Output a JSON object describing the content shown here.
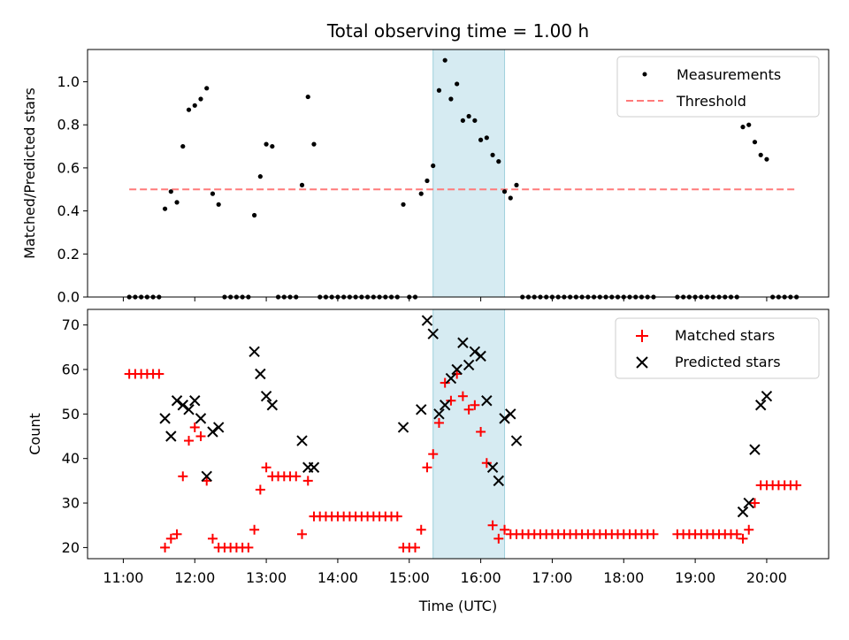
{
  "title": "Total observing time = 1.00 h",
  "colors": {
    "measurement": "#000000",
    "threshold": "#ff7a7a",
    "matched": "#ff0000",
    "predicted": "#000000",
    "highlight": "#add8e6"
  },
  "chart_data": [
    {
      "type": "scatter",
      "ylabel": "Matched/Predicted stars",
      "xlabel": "",
      "xlim": [
        "10:30",
        "20:52"
      ],
      "ylim": [
        0,
        1.15
      ],
      "yticks": [
        "0.0",
        "0.2",
        "0.4",
        "0.6",
        "0.8",
        "1.0"
      ],
      "grid": false,
      "legend_position": "top-right",
      "highlight_span": [
        "15:20",
        "16:20"
      ],
      "threshold": {
        "name": "Threshold",
        "y": 0.5,
        "x_start": "11:05",
        "x_end": "20:25",
        "style": "dashed"
      },
      "series": [
        {
          "name": "Measurements",
          "marker": "dot",
          "points": [
            [
              "11:05",
              0
            ],
            [
              "11:10",
              0
            ],
            [
              "11:15",
              0
            ],
            [
              "11:20",
              0
            ],
            [
              "11:25",
              0
            ],
            [
              "11:30",
              0
            ],
            [
              "11:35",
              0.41
            ],
            [
              "11:40",
              0.49
            ],
            [
              "11:45",
              0.44
            ],
            [
              "11:50",
              0.7
            ],
            [
              "11:55",
              0.87
            ],
            [
              "12:00",
              0.89
            ],
            [
              "12:05",
              0.92
            ],
            [
              "12:10",
              0.97
            ],
            [
              "12:15",
              0.48
            ],
            [
              "12:20",
              0.43
            ],
            [
              "12:25",
              0
            ],
            [
              "12:30",
              0
            ],
            [
              "12:35",
              0
            ],
            [
              "12:40",
              0
            ],
            [
              "12:45",
              0
            ],
            [
              "12:50",
              0.38
            ],
            [
              "12:55",
              0.56
            ],
            [
              "13:00",
              0.71
            ],
            [
              "13:05",
              0.7
            ],
            [
              "13:10",
              0
            ],
            [
              "13:15",
              0
            ],
            [
              "13:20",
              0
            ],
            [
              "13:25",
              0
            ],
            [
              "13:30",
              0.52
            ],
            [
              "13:35",
              0.93
            ],
            [
              "13:40",
              0.71
            ],
            [
              "13:45",
              0
            ],
            [
              "13:50",
              0
            ],
            [
              "13:55",
              0
            ],
            [
              "14:00",
              0
            ],
            [
              "14:05",
              0
            ],
            [
              "14:10",
              0
            ],
            [
              "14:15",
              0
            ],
            [
              "14:20",
              0
            ],
            [
              "14:25",
              0
            ],
            [
              "14:30",
              0
            ],
            [
              "14:35",
              0
            ],
            [
              "14:40",
              0
            ],
            [
              "14:45",
              0
            ],
            [
              "14:50",
              0
            ],
            [
              "14:55",
              0.43
            ],
            [
              "15:00",
              0
            ],
            [
              "15:05",
              0
            ],
            [
              "15:10",
              0.48
            ],
            [
              "15:15",
              0.54
            ],
            [
              "15:20",
              0.61
            ],
            [
              "15:25",
              0.96
            ],
            [
              "15:30",
              1.1
            ],
            [
              "15:35",
              0.92
            ],
            [
              "15:40",
              0.99
            ],
            [
              "15:45",
              0.82
            ],
            [
              "15:50",
              0.84
            ],
            [
              "15:55",
              0.82
            ],
            [
              "16:00",
              0.73
            ],
            [
              "16:05",
              0.74
            ],
            [
              "16:10",
              0.66
            ],
            [
              "16:15",
              0.63
            ],
            [
              "16:20",
              0.49
            ],
            [
              "16:25",
              0.46
            ],
            [
              "16:30",
              0.52
            ],
            [
              "16:35",
              0
            ],
            [
              "16:40",
              0
            ],
            [
              "16:45",
              0
            ],
            [
              "16:50",
              0
            ],
            [
              "16:55",
              0
            ],
            [
              "17:00",
              0
            ],
            [
              "17:05",
              0
            ],
            [
              "17:10",
              0
            ],
            [
              "17:15",
              0
            ],
            [
              "17:20",
              0
            ],
            [
              "17:25",
              0
            ],
            [
              "17:30",
              0
            ],
            [
              "17:35",
              0
            ],
            [
              "17:40",
              0
            ],
            [
              "17:45",
              0
            ],
            [
              "17:50",
              0
            ],
            [
              "17:55",
              0
            ],
            [
              "18:00",
              0
            ],
            [
              "18:05",
              0
            ],
            [
              "18:10",
              0
            ],
            [
              "18:15",
              0
            ],
            [
              "18:20",
              0
            ],
            [
              "18:25",
              0
            ],
            [
              "18:45",
              0
            ],
            [
              "18:50",
              0
            ],
            [
              "18:55",
              0
            ],
            [
              "19:00",
              0
            ],
            [
              "19:05",
              0
            ],
            [
              "19:10",
              0
            ],
            [
              "19:15",
              0
            ],
            [
              "19:20",
              0
            ],
            [
              "19:25",
              0
            ],
            [
              "19:30",
              0
            ],
            [
              "19:35",
              0
            ],
            [
              "19:40",
              0.79
            ],
            [
              "19:45",
              0.8
            ],
            [
              "19:50",
              0.72
            ],
            [
              "19:55",
              0.66
            ],
            [
              "20:00",
              0.64
            ],
            [
              "20:05",
              0
            ],
            [
              "20:10",
              0
            ],
            [
              "20:15",
              0
            ],
            [
              "20:20",
              0
            ],
            [
              "20:25",
              0
            ]
          ]
        }
      ]
    },
    {
      "type": "scatter",
      "ylabel": "Count",
      "xlabel": "Time (UTC)",
      "xlim": [
        "10:30",
        "20:52"
      ],
      "ylim": [
        17.5,
        73.5
      ],
      "yticks": [
        "20",
        "30",
        "40",
        "50",
        "60",
        "70"
      ],
      "xticks": [
        "11:00",
        "12:00",
        "13:00",
        "14:00",
        "15:00",
        "16:00",
        "17:00",
        "18:00",
        "19:00",
        "20:00"
      ],
      "grid": false,
      "legend_position": "top-right",
      "highlight_span": [
        "15:20",
        "16:20"
      ],
      "series": [
        {
          "name": "Matched stars",
          "marker": "plus",
          "points": [
            [
              "11:05",
              59
            ],
            [
              "11:10",
              59
            ],
            [
              "11:15",
              59
            ],
            [
              "11:20",
              59
            ],
            [
              "11:25",
              59
            ],
            [
              "11:30",
              59
            ],
            [
              "11:35",
              20
            ],
            [
              "11:40",
              22
            ],
            [
              "11:45",
              23
            ],
            [
              "11:50",
              36
            ],
            [
              "11:55",
              44
            ],
            [
              "12:00",
              47
            ],
            [
              "12:05",
              45
            ],
            [
              "12:10",
              35
            ],
            [
              "12:15",
              22
            ],
            [
              "12:20",
              20
            ],
            [
              "12:25",
              20
            ],
            [
              "12:30",
              20
            ],
            [
              "12:35",
              20
            ],
            [
              "12:40",
              20
            ],
            [
              "12:45",
              20
            ],
            [
              "12:50",
              24
            ],
            [
              "12:55",
              33
            ],
            [
              "13:00",
              38
            ],
            [
              "13:05",
              36
            ],
            [
              "13:10",
              36
            ],
            [
              "13:15",
              36
            ],
            [
              "13:20",
              36
            ],
            [
              "13:25",
              36
            ],
            [
              "13:30",
              23
            ],
            [
              "13:35",
              35
            ],
            [
              "13:40",
              27
            ],
            [
              "13:45",
              27
            ],
            [
              "13:50",
              27
            ],
            [
              "13:55",
              27
            ],
            [
              "14:00",
              27
            ],
            [
              "14:05",
              27
            ],
            [
              "14:10",
              27
            ],
            [
              "14:15",
              27
            ],
            [
              "14:20",
              27
            ],
            [
              "14:25",
              27
            ],
            [
              "14:30",
              27
            ],
            [
              "14:35",
              27
            ],
            [
              "14:40",
              27
            ],
            [
              "14:45",
              27
            ],
            [
              "14:50",
              27
            ],
            [
              "14:55",
              20
            ],
            [
              "15:00",
              20
            ],
            [
              "15:05",
              20
            ],
            [
              "15:10",
              24
            ],
            [
              "15:15",
              38
            ],
            [
              "15:20",
              41
            ],
            [
              "15:25",
              48
            ],
            [
              "15:30",
              57
            ],
            [
              "15:35",
              53
            ],
            [
              "15:40",
              59
            ],
            [
              "15:45",
              54
            ],
            [
              "15:50",
              51
            ],
            [
              "15:55",
              52
            ],
            [
              "16:00",
              46
            ],
            [
              "16:05",
              39
            ],
            [
              "16:10",
              25
            ],
            [
              "16:15",
              22
            ],
            [
              "16:20",
              24
            ],
            [
              "16:25",
              23
            ],
            [
              "16:30",
              23
            ],
            [
              "16:35",
              23
            ],
            [
              "16:40",
              23
            ],
            [
              "16:45",
              23
            ],
            [
              "16:50",
              23
            ],
            [
              "16:55",
              23
            ],
            [
              "17:00",
              23
            ],
            [
              "17:05",
              23
            ],
            [
              "17:10",
              23
            ],
            [
              "17:15",
              23
            ],
            [
              "17:20",
              23
            ],
            [
              "17:25",
              23
            ],
            [
              "17:30",
              23
            ],
            [
              "17:35",
              23
            ],
            [
              "17:40",
              23
            ],
            [
              "17:45",
              23
            ],
            [
              "17:50",
              23
            ],
            [
              "17:55",
              23
            ],
            [
              "18:00",
              23
            ],
            [
              "18:05",
              23
            ],
            [
              "18:10",
              23
            ],
            [
              "18:15",
              23
            ],
            [
              "18:20",
              23
            ],
            [
              "18:25",
              23
            ],
            [
              "18:45",
              23
            ],
            [
              "18:50",
              23
            ],
            [
              "18:55",
              23
            ],
            [
              "19:00",
              23
            ],
            [
              "19:05",
              23
            ],
            [
              "19:10",
              23
            ],
            [
              "19:15",
              23
            ],
            [
              "19:20",
              23
            ],
            [
              "19:25",
              23
            ],
            [
              "19:30",
              23
            ],
            [
              "19:35",
              23
            ],
            [
              "19:40",
              22
            ],
            [
              "19:45",
              24
            ],
            [
              "19:50",
              30
            ],
            [
              "19:55",
              34
            ],
            [
              "20:00",
              34
            ],
            [
              "20:05",
              34
            ],
            [
              "20:10",
              34
            ],
            [
              "20:15",
              34
            ],
            [
              "20:20",
              34
            ],
            [
              "20:25",
              34
            ]
          ]
        },
        {
          "name": "Predicted stars",
          "marker": "x",
          "points": [
            [
              "11:35",
              49
            ],
            [
              "11:40",
              45
            ],
            [
              "11:45",
              53
            ],
            [
              "11:50",
              52
            ],
            [
              "11:55",
              51
            ],
            [
              "12:00",
              53
            ],
            [
              "12:05",
              49
            ],
            [
              "12:10",
              36
            ],
            [
              "12:15",
              46
            ],
            [
              "12:20",
              47
            ],
            [
              "12:50",
              64
            ],
            [
              "12:55",
              59
            ],
            [
              "13:00",
              54
            ],
            [
              "13:05",
              52
            ],
            [
              "13:30",
              44
            ],
            [
              "13:35",
              38
            ],
            [
              "13:40",
              38
            ],
            [
              "14:55",
              47
            ],
            [
              "15:10",
              51
            ],
            [
              "15:15",
              71
            ],
            [
              "15:20",
              68
            ],
            [
              "15:25",
              50
            ],
            [
              "15:30",
              52
            ],
            [
              "15:35",
              58
            ],
            [
              "15:40",
              60
            ],
            [
              "15:45",
              66
            ],
            [
              "15:50",
              61
            ],
            [
              "15:55",
              64
            ],
            [
              "16:00",
              63
            ],
            [
              "16:05",
              53
            ],
            [
              "16:10",
              38
            ],
            [
              "16:15",
              35
            ],
            [
              "16:20",
              49
            ],
            [
              "16:25",
              50
            ],
            [
              "16:30",
              44
            ],
            [
              "19:40",
              28
            ],
            [
              "19:45",
              30
            ],
            [
              "19:50",
              42
            ],
            [
              "19:55",
              52
            ],
            [
              "20:00",
              54
            ]
          ]
        }
      ]
    }
  ]
}
